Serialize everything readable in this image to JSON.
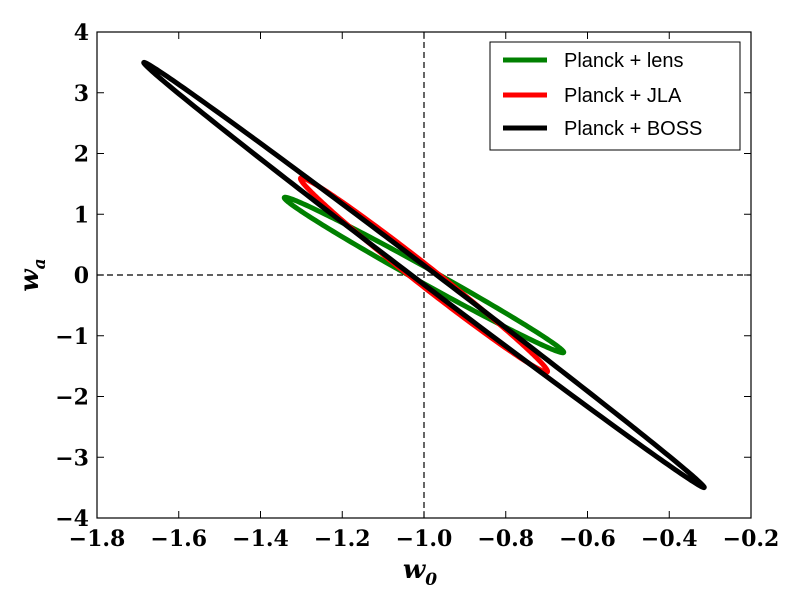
{
  "chart_data": {
    "type": "contour",
    "xlabel": "w",
    "xlabel_sub": "0",
    "ylabel": "w",
    "ylabel_sub": "a",
    "xlim": [
      -1.8,
      -0.2
    ],
    "ylim": [
      -4,
      4
    ],
    "xticks": [
      -1.8,
      -1.6,
      -1.4,
      -1.2,
      -1.0,
      -0.8,
      -0.6,
      -0.4,
      -0.2
    ],
    "xtick_labels": [
      "−1.8",
      "−1.6",
      "−1.4",
      "−1.2",
      "−1.0",
      "−0.8",
      "−0.6",
      "−0.4",
      "−0.2"
    ],
    "yticks": [
      -4,
      -3,
      -2,
      -1,
      0,
      1,
      2,
      3,
      4
    ],
    "ytick_labels": [
      "−4",
      "−3",
      "−2",
      "−1",
      "0",
      "1",
      "2",
      "3",
      "4"
    ],
    "reference_lines": {
      "x": -1.0,
      "y": 0,
      "style": "dashed"
    },
    "legend_placement": "top-right",
    "series": [
      {
        "name": "Planck + lens",
        "color": "#008000",
        "shape": "ellipse",
        "center": [
          -1.0,
          0.0
        ],
        "vertex_a": [
          -1.34,
          1.28
        ],
        "vertex_b": [
          -0.655,
          -1.28
        ],
        "max_y_point": [
          -1.315,
          1.33
        ],
        "min_y_point": [
          -0.685,
          -1.33
        ]
      },
      {
        "name": "Planck + JLA",
        "color": "#ff0000",
        "shape": "ellipse",
        "center": [
          -1.0,
          0.0
        ],
        "vertex_a": [
          -1.3,
          1.6
        ],
        "vertex_b": [
          -0.7,
          -1.6
        ],
        "max_y_point": [
          -1.29,
          1.75
        ],
        "min_y_point": [
          -0.71,
          -1.75
        ]
      },
      {
        "name": "Planck + BOSS",
        "color": "#000000",
        "shape": "ellipse",
        "center": [
          -1.0,
          0.0
        ],
        "vertex_a": [
          -1.685,
          3.5
        ],
        "vertex_b": [
          -0.315,
          -3.5
        ],
        "max_y_point": [
          -1.66,
          3.53
        ],
        "min_y_point": [
          -0.34,
          -3.53
        ]
      }
    ]
  }
}
